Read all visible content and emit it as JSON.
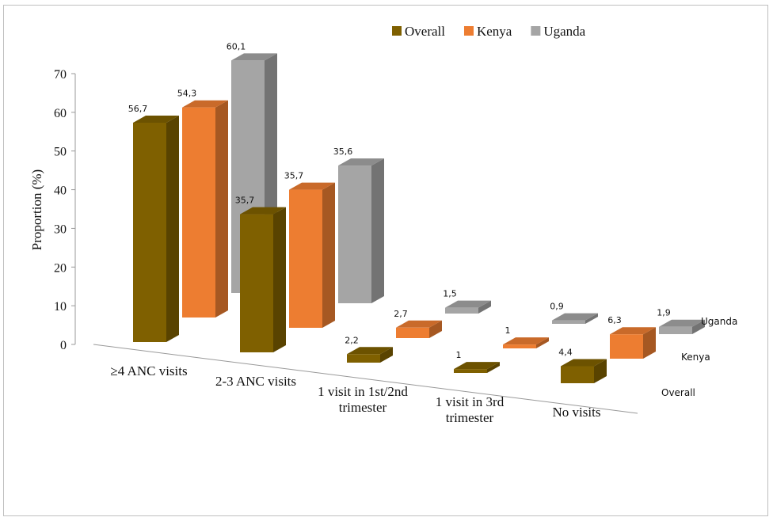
{
  "chart_data": {
    "type": "bar3d",
    "y_label": "Proportion (%)",
    "categories": [
      "≥4 ANC visits",
      "2-3 ANC visits",
      "1 visit in 1st/2nd trimester",
      "1 visit in 3rd trimester",
      "No visits"
    ],
    "series": [
      {
        "name": "Overall",
        "color": "#7f6000",
        "values": [
          56.7,
          35.7,
          2.2,
          1,
          4.4
        ],
        "value_labels": [
          "56,7",
          "35,7",
          "2,2",
          "1",
          "4,4"
        ]
      },
      {
        "name": "Kenya",
        "color": "#ed7d31",
        "values": [
          54.3,
          35.7,
          2.7,
          1,
          6.3
        ],
        "value_labels": [
          "54,3",
          "35,7",
          "2,7",
          "1",
          "6,3"
        ]
      },
      {
        "name": "Uganda",
        "color": "#a5a5a5",
        "values": [
          60.1,
          35.6,
          1.5,
          0.9,
          1.9
        ],
        "value_labels": [
          "60,1",
          "35,6",
          "1,5",
          "0,9",
          "1,9"
        ]
      }
    ],
    "ylim": [
      0,
      70
    ],
    "yticks": [
      0,
      10,
      20,
      30,
      40,
      50,
      60,
      70
    ],
    "grid": false,
    "legend": "top"
  }
}
